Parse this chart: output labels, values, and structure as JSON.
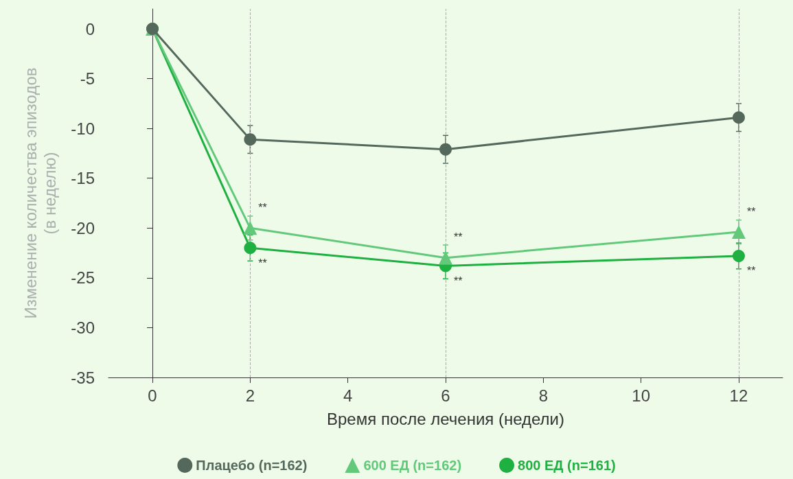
{
  "chart_data": {
    "type": "line",
    "xlabel": "Время после лечения (недели)",
    "ylabel": "Изменение количества эпизодов\n(в неделю)",
    "x": [
      0,
      2,
      6,
      12
    ],
    "series": [
      {
        "name": "Плацебо (n=162)",
        "color": "#54685c",
        "marker": "circle",
        "values": [
          0,
          -11.1,
          -12.1,
          -8.9
        ],
        "errors": [
          null,
          1.4,
          1.4,
          1.4
        ]
      },
      {
        "name": "600 ЕД (n=162)",
        "color": "#62c97b",
        "marker": "triangle",
        "values": [
          0,
          -20,
          -23,
          -20.4
        ],
        "errors": [
          null,
          1.2,
          1.3,
          1.2
        ]
      },
      {
        "name": "800 ЕД (n=161)",
        "color": "#1eb040",
        "marker": "circle",
        "values": [
          0,
          -22,
          -23.8,
          -22.8
        ],
        "errors": [
          null,
          1.3,
          1.3,
          1.3
        ]
      }
    ],
    "xlim": [
      -0.9,
      12.9
    ],
    "xticks": [
      0,
      2,
      4,
      6,
      8,
      10,
      12
    ],
    "ylim": [
      -35,
      2
    ],
    "yticks": [
      0,
      -5,
      -10,
      -15,
      -20,
      -25,
      -30,
      -35
    ],
    "grid": false,
    "legend": "bottom",
    "line_style": "solid",
    "ref_lines": [
      {
        "axis": "x",
        "value": 2,
        "color": "#aaaaaa",
        "line_style": "dashed"
      },
      {
        "axis": "x",
        "value": 6,
        "color": "#aaaaaa",
        "line_style": "dashed"
      },
      {
        "axis": "x",
        "value": 12,
        "color": "#aaaaaa",
        "line_style": "dashed"
      }
    ],
    "annotations": [
      {
        "text": "**",
        "x": 2,
        "y": -20
      },
      {
        "text": "**",
        "x": 2,
        "y": -22
      },
      {
        "text": "**",
        "x": 6,
        "y": -23
      },
      {
        "text": "**",
        "x": 6,
        "y": -23.8
      },
      {
        "text": "**",
        "x": 12,
        "y": -20.4
      },
      {
        "text": "**",
        "x": 12,
        "y": -22.8
      }
    ]
  }
}
